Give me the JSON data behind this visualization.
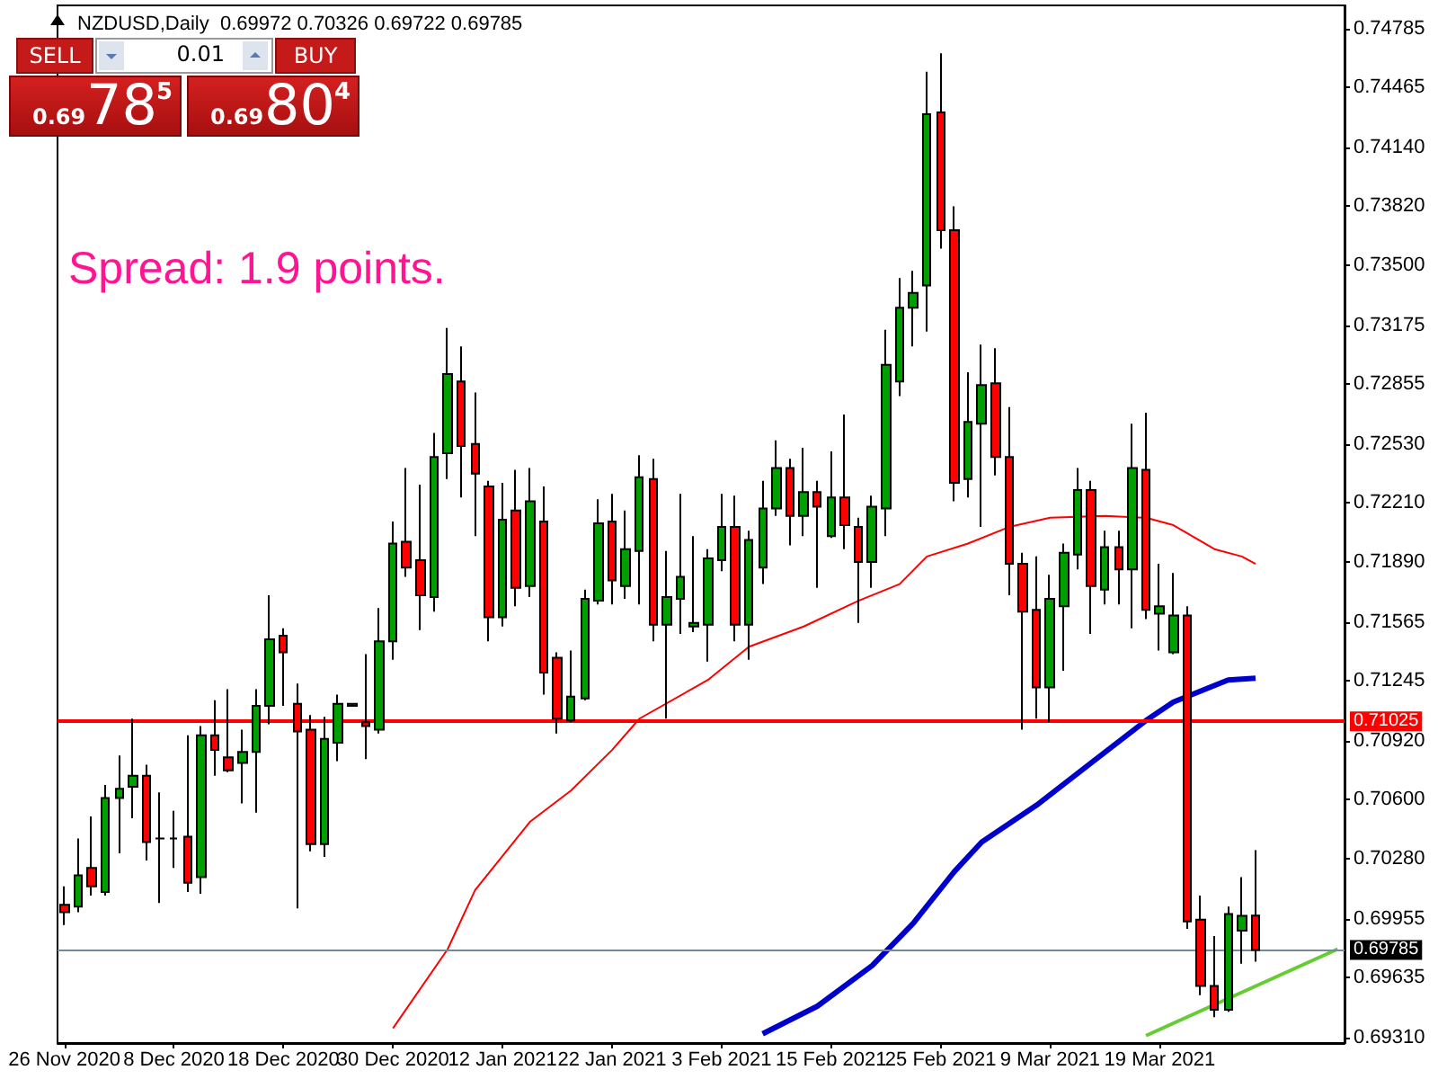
{
  "chart_data": {
    "type": "candlestick",
    "title": "NZDUSD,Daily  0.69972 0.70326 0.69722 0.69785",
    "annotations": [
      "Spread: 1.9 points.",
      "SELL",
      "0.01",
      "BUY",
      "0.69",
      "78",
      "5",
      "0.69",
      "80",
      "4"
    ],
    "categories": [
      "26 Nov 2020",
      null,
      null,
      null,
      null,
      null,
      null,
      null,
      "8 Dec 2020",
      null,
      null,
      null,
      null,
      null,
      null,
      null,
      "18 Dec 2020",
      null,
      null,
      null,
      null,
      null,
      null,
      null,
      "30 Dec 2020",
      null,
      null,
      null,
      null,
      null,
      null,
      null,
      "12 Jan 2021",
      null,
      null,
      null,
      null,
      null,
      null,
      null,
      "22 Jan 2021",
      null,
      null,
      null,
      null,
      null,
      null,
      null,
      "3 Feb 2021",
      null,
      null,
      null,
      null,
      null,
      null,
      null,
      "15 Feb 2021",
      null,
      null,
      null,
      null,
      null,
      null,
      null,
      "25 Feb 2021",
      null,
      null,
      null,
      null,
      null,
      null,
      null,
      "9 Mar 2021",
      null,
      null,
      null,
      null,
      null,
      null,
      null,
      "19 Mar 2021",
      null,
      null,
      null,
      null,
      null,
      null,
      null,
      null,
      null,
      null,
      null,
      null,
      null
    ],
    "ohlc": [
      [
        0.7003,
        0.7013,
        0.6992,
        0.6999
      ],
      [
        0.7002,
        0.7039,
        0.6999,
        0.7019
      ],
      [
        0.7023,
        0.7051,
        0.7008,
        0.7013
      ],
      [
        0.701,
        0.7068,
        0.7008,
        0.7061
      ],
      [
        0.7061,
        0.7084,
        0.7031,
        0.7066
      ],
      [
        0.7067,
        0.7104,
        0.705,
        0.7073
      ],
      [
        0.7073,
        0.7079,
        0.7027,
        0.7037
      ],
      [
        0.7039,
        0.7064,
        0.7004,
        0.7039
      ],
      [
        0.7039,
        0.7054,
        0.7023,
        0.7039
      ],
      [
        0.704,
        0.7095,
        0.701,
        0.7015
      ],
      [
        0.7018,
        0.71,
        0.7009,
        0.7095
      ],
      [
        0.7095,
        0.7114,
        0.7073,
        0.7087
      ],
      [
        0.7083,
        0.712,
        0.7075,
        0.7076
      ],
      [
        0.708,
        0.7098,
        0.7058,
        0.7086
      ],
      [
        0.7086,
        0.712,
        0.7053,
        0.7111
      ],
      [
        0.7111,
        0.7171,
        0.7101,
        0.7147
      ],
      [
        0.7149,
        0.7153,
        0.7111,
        0.714
      ],
      [
        0.7112,
        0.7123,
        0.7001,
        0.7097
      ],
      [
        0.7098,
        0.7106,
        0.7032,
        0.7036
      ],
      [
        0.7036,
        0.7105,
        0.7029,
        0.7093
      ],
      [
        0.7091,
        0.7117,
        0.7081,
        0.7112
      ],
      [
        0.7111,
        0.7112,
        0.7111,
        0.7112
      ],
      [
        0.7102,
        0.7139,
        0.7082,
        0.71
      ],
      [
        0.7098,
        0.7164,
        0.7096,
        0.7146
      ],
      [
        0.7146,
        0.7211,
        0.7136,
        0.7199
      ],
      [
        0.72,
        0.724,
        0.7181,
        0.7186
      ],
      [
        0.719,
        0.7231,
        0.7152,
        0.7171
      ],
      [
        0.717,
        0.7259,
        0.7162,
        0.7246
      ],
      [
        0.7248,
        0.7316,
        0.7234,
        0.7291
      ],
      [
        0.7287,
        0.7306,
        0.7224,
        0.7252
      ],
      [
        0.7253,
        0.7281,
        0.7203,
        0.7237
      ],
      [
        0.723,
        0.7233,
        0.7146,
        0.7159
      ],
      [
        0.7159,
        0.7232,
        0.7154,
        0.7212
      ],
      [
        0.7217,
        0.7239,
        0.7165,
        0.7175
      ],
      [
        0.7176,
        0.724,
        0.717,
        0.7222
      ],
      [
        0.7211,
        0.723,
        0.7117,
        0.7129
      ],
      [
        0.7137,
        0.714,
        0.7096,
        0.7104
      ],
      [
        0.7103,
        0.7141,
        0.7102,
        0.7116
      ],
      [
        0.7115,
        0.7174,
        0.7114,
        0.7169
      ],
      [
        0.7168,
        0.7223,
        0.7166,
        0.721
      ],
      [
        0.7211,
        0.7226,
        0.7166,
        0.7179
      ],
      [
        0.7176,
        0.7217,
        0.7169,
        0.7196
      ],
      [
        0.7195,
        0.7247,
        0.7166,
        0.7235
      ],
      [
        0.7234,
        0.7245,
        0.7146,
        0.7155
      ],
      [
        0.7155,
        0.7195,
        0.7104,
        0.717
      ],
      [
        0.7169,
        0.7226,
        0.715,
        0.7181
      ],
      [
        0.7154,
        0.7203,
        0.7151,
        0.7156
      ],
      [
        0.7155,
        0.7196,
        0.7135,
        0.7191
      ],
      [
        0.719,
        0.7226,
        0.7184,
        0.7208
      ],
      [
        0.7208,
        0.7225,
        0.7146,
        0.7155
      ],
      [
        0.7155,
        0.7206,
        0.7136,
        0.7201
      ],
      [
        0.7186,
        0.7233,
        0.7177,
        0.7218
      ],
      [
        0.7218,
        0.7255,
        0.7214,
        0.724
      ],
      [
        0.724,
        0.7245,
        0.7198,
        0.7214
      ],
      [
        0.7214,
        0.7251,
        0.7203,
        0.7227
      ],
      [
        0.7227,
        0.7233,
        0.7175,
        0.7219
      ],
      [
        0.7203,
        0.7249,
        0.7202,
        0.7224
      ],
      [
        0.7224,
        0.7269,
        0.7196,
        0.7209
      ],
      [
        0.7208,
        0.7213,
        0.7156,
        0.7189
      ],
      [
        0.7189,
        0.7225,
        0.7175,
        0.7219
      ],
      [
        0.7218,
        0.7315,
        0.7203,
        0.7296
      ],
      [
        0.7287,
        0.7343,
        0.7279,
        0.7327
      ],
      [
        0.7327,
        0.7347,
        0.7306,
        0.7335
      ],
      [
        0.7339,
        0.7455,
        0.7314,
        0.7432
      ],
      [
        0.7433,
        0.7465,
        0.7359,
        0.7369
      ],
      [
        0.7369,
        0.7382,
        0.7222,
        0.7232
      ],
      [
        0.7234,
        0.7292,
        0.7224,
        0.7265
      ],
      [
        0.7264,
        0.7307,
        0.7208,
        0.7285
      ],
      [
        0.7286,
        0.7305,
        0.7236,
        0.7246
      ],
      [
        0.7246,
        0.7273,
        0.7171,
        0.7188
      ],
      [
        0.7188,
        0.7194,
        0.7098,
        0.7162
      ],
      [
        0.7163,
        0.7192,
        0.7104,
        0.7121
      ],
      [
        0.7121,
        0.7182,
        0.7102,
        0.7169
      ],
      [
        0.7165,
        0.7199,
        0.713,
        0.7194
      ],
      [
        0.7193,
        0.724,
        0.7185,
        0.7228
      ],
      [
        0.7228,
        0.7233,
        0.715,
        0.7176
      ],
      [
        0.7174,
        0.7206,
        0.7166,
        0.7197
      ],
      [
        0.7197,
        0.7206,
        0.7166,
        0.7185
      ],
      [
        0.7185,
        0.7264,
        0.7153,
        0.724
      ],
      [
        0.7239,
        0.727,
        0.7158,
        0.7163
      ],
      [
        0.7161,
        0.7188,
        0.7141,
        0.7165
      ],
      [
        0.714,
        0.7183,
        0.7139,
        0.716
      ],
      [
        0.716,
        0.7165,
        0.699,
        0.6994
      ],
      [
        0.6995,
        0.7008,
        0.6954,
        0.6959
      ],
      [
        0.6959,
        0.6986,
        0.6942,
        0.6946
      ],
      [
        0.6946,
        0.7002,
        0.6945,
        0.6998
      ],
      [
        0.6989,
        0.7018,
        0.6971,
        0.6997
      ],
      [
        0.69972,
        0.70326,
        0.69722,
        0.69785
      ],
      null,
      null,
      null,
      null,
      null,
      null
    ],
    "colors": [
      "#ff0000",
      "#00a000",
      "#ff0000",
      "#00a000",
      "#00a000",
      "#00a000",
      "#ff0000",
      "#000000",
      "#000000",
      "#ff0000",
      "#00a000",
      "#ff0000",
      "#ff0000",
      "#00a000",
      "#00a000",
      "#00a000",
      "#ff0000",
      "#ff0000",
      "#ff0000",
      "#00a000",
      "#00a000",
      "#00a000",
      "#ff0000",
      "#00a000",
      "#00a000",
      "#ff0000",
      "#ff0000",
      "#00a000",
      "#00a000",
      "#ff0000",
      "#ff0000",
      "#ff0000",
      "#00a000",
      "#ff0000",
      "#00a000",
      "#ff0000",
      "#ff0000",
      "#00a000",
      "#00a000",
      "#00a000",
      "#ff0000",
      "#00a000",
      "#00a000",
      "#ff0000",
      "#00a000",
      "#00a000",
      "#00a000",
      "#00a000",
      "#00a000",
      "#ff0000",
      "#00a000",
      "#00a000",
      "#00a000",
      "#ff0000",
      "#00a000",
      "#ff0000",
      "#00a000",
      "#ff0000",
      "#ff0000",
      "#00a000",
      "#00a000",
      "#00a000",
      "#00a000",
      "#00a000",
      "#ff0000",
      "#ff0000",
      "#00a000",
      "#00a000",
      "#ff0000",
      "#ff0000",
      "#ff0000",
      "#ff0000",
      "#00a000",
      "#00a000",
      "#00a000",
      "#ff0000",
      "#00a000",
      "#ff0000",
      "#00a000",
      "#ff0000",
      "#00a000",
      "#00a000",
      "#ff0000",
      "#ff0000",
      "#ff0000",
      "#00a000",
      "#00a000",
      "#ff0000",
      null,
      null,
      null,
      null,
      null,
      null
    ],
    "series": [
      {
        "type": "line",
        "color": "#ff0000",
        "values": [
          null,
          null,
          null,
          null,
          null,
          null,
          null,
          null,
          null,
          null,
          null,
          null,
          null,
          null,
          null,
          null,
          null,
          null,
          null,
          null,
          null,
          null,
          null,
          null,
          0.6936,
          null,
          null,
          null,
          0.6979,
          null,
          0.7011,
          null,
          null,
          null,
          0.7048,
          null,
          null,
          0.7065,
          null,
          null,
          0.7087,
          null,
          0.7104,
          null,
          null,
          null,
          null,
          0.7125,
          null,
          null,
          0.7143,
          null,
          null,
          null,
          0.7154,
          null,
          null,
          null,
          0.7168,
          null,
          null,
          0.7177,
          null,
          0.7192,
          null,
          null,
          0.7199,
          null,
          null,
          0.7208,
          null,
          null,
          0.7213,
          null,
          null,
          null,
          0.7214,
          null,
          null,
          0.7213,
          null,
          0.7209,
          null,
          null,
          0.7196,
          null,
          0.7192,
          0.7188,
          null,
          null,
          null,
          null,
          null,
          null
        ]
      },
      {
        "type": "line",
        "color": "#0000cd",
        "values": [
          null,
          null,
          null,
          null,
          null,
          null,
          null,
          null,
          null,
          null,
          null,
          null,
          null,
          null,
          null,
          null,
          null,
          null,
          null,
          null,
          null,
          null,
          null,
          null,
          null,
          null,
          null,
          null,
          null,
          null,
          null,
          null,
          null,
          null,
          null,
          null,
          null,
          null,
          null,
          null,
          null,
          null,
          null,
          null,
          null,
          null,
          null,
          null,
          null,
          null,
          null,
          0.6933,
          null,
          null,
          null,
          0.6948,
          null,
          null,
          null,
          0.697,
          null,
          null,
          0.6993,
          null,
          null,
          0.7021,
          null,
          0.7037,
          null,
          null,
          null,
          0.7057,
          null,
          null,
          null,
          0.708,
          null,
          null,
          null,
          0.7103,
          null,
          0.7113,
          null,
          0.7119,
          null,
          0.7125,
          null,
          0.7126,
          null,
          null,
          null,
          null,
          null,
          null
        ]
      },
      {
        "type": "line",
        "color": "#66cc33",
        "values": [
          null,
          null,
          null,
          null,
          null,
          null,
          null,
          null,
          null,
          null,
          null,
          null,
          null,
          null,
          null,
          null,
          null,
          null,
          null,
          null,
          null,
          null,
          null,
          null,
          null,
          null,
          null,
          null,
          null,
          null,
          null,
          null,
          null,
          null,
          null,
          null,
          null,
          null,
          null,
          null,
          null,
          null,
          null,
          null,
          null,
          null,
          null,
          null,
          null,
          null,
          null,
          null,
          null,
          null,
          null,
          null,
          null,
          null,
          null,
          null,
          null,
          null,
          null,
          null,
          null,
          null,
          null,
          null,
          null,
          null,
          null,
          null,
          null,
          null,
          null,
          null,
          null,
          null,
          null,
          0.6932,
          null,
          null,
          null,
          null,
          null,
          null,
          null,
          null,
          null,
          null,
          null,
          null,
          null,
          0.6979
        ]
      }
    ],
    "marker": "none",
    "grid": false,
    "ylim": [
      0.6928,
      0.7491
    ],
    "yticks": [
      {
        "value": 0.6931,
        "label": "0.69310"
      },
      0.69635,
      0.69955,
      {
        "value": 0.7028,
        "label": "0.70280"
      },
      {
        "value": 0.706,
        "label": "0.70600"
      },
      {
        "value": 0.7092,
        "label": "0.70920"
      },
      0.71245,
      0.71565,
      {
        "value": 0.7189,
        "label": "0.71890"
      },
      {
        "value": 0.7221,
        "label": "0.72210"
      },
      {
        "value": 0.7253,
        "label": "0.72530"
      },
      0.72855,
      0.73175,
      {
        "value": 0.735,
        "label": "0.73500"
      },
      {
        "value": 0.7382,
        "label": "0.73820"
      },
      {
        "value": 0.7414,
        "label": "0.74140"
      },
      0.74465,
      0.74785
    ],
    "ref_lines": [
      {
        "axis": "y",
        "value": 0.71025,
        "label": "0.71025",
        "color": "#ff0000"
      },
      {
        "axis": "y",
        "value": 0.69785,
        "label": "0.69785",
        "color": "#778899"
      }
    ]
  }
}
